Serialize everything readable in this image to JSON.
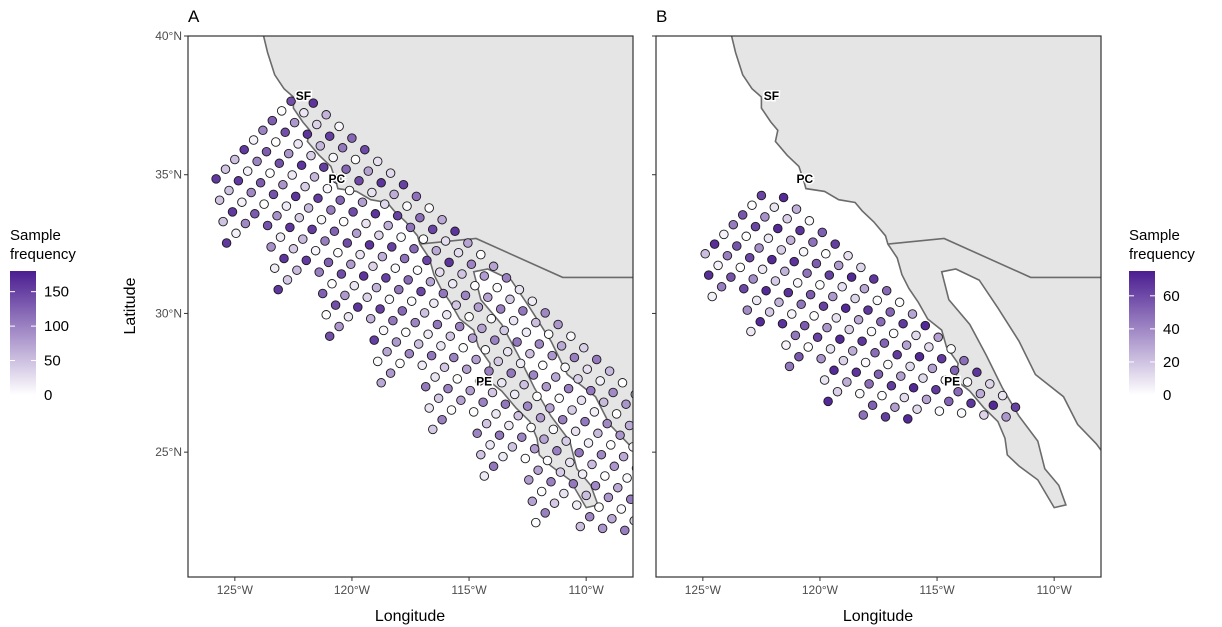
{
  "map": {
    "xlabel": "Longitude",
    "ylabel": "Latitude",
    "x_ticks": [
      "125°W",
      "120°W",
      "115°W",
      "110°W"
    ],
    "y_ticks": [
      "40°N",
      "35°N",
      "30°N",
      "25°N"
    ],
    "x_tick_values": [
      -125,
      -120,
      -115,
      -110
    ],
    "y_tick_values": [
      40,
      35,
      30,
      25
    ],
    "xlim": [
      -127,
      -108
    ],
    "ylim": [
      20.5,
      40
    ],
    "land_color": "#e5e5e5",
    "coast_color": "#6b6b6b",
    "cities": [
      {
        "label": "SF",
        "lon": -122.4,
        "lat": 37.7
      },
      {
        "label": "PC",
        "lon": -121.0,
        "lat": 34.7
      },
      {
        "label": "PE",
        "lon": -114.7,
        "lat": 27.4
      }
    ]
  },
  "panels": [
    {
      "tag": "A",
      "legend": {
        "title_line1": "Sample",
        "title_line2": "frequency",
        "ticks": [
          "150",
          "100",
          "50",
          "0"
        ],
        "tick_values": [
          150,
          100,
          50,
          0
        ],
        "max": 180
      },
      "color_low": "#ffffff",
      "color_high": "#4b1d91"
    },
    {
      "tag": "B",
      "legend": {
        "title_line1": "Sample",
        "title_line2": "frequency",
        "ticks": [
          "60",
          "40",
          "20",
          "0"
        ],
        "tick_values": [
          60,
          40,
          20,
          0
        ],
        "max": 75
      },
      "color_low": "#ffffff",
      "color_high": "#4b1d91"
    }
  ]
}
